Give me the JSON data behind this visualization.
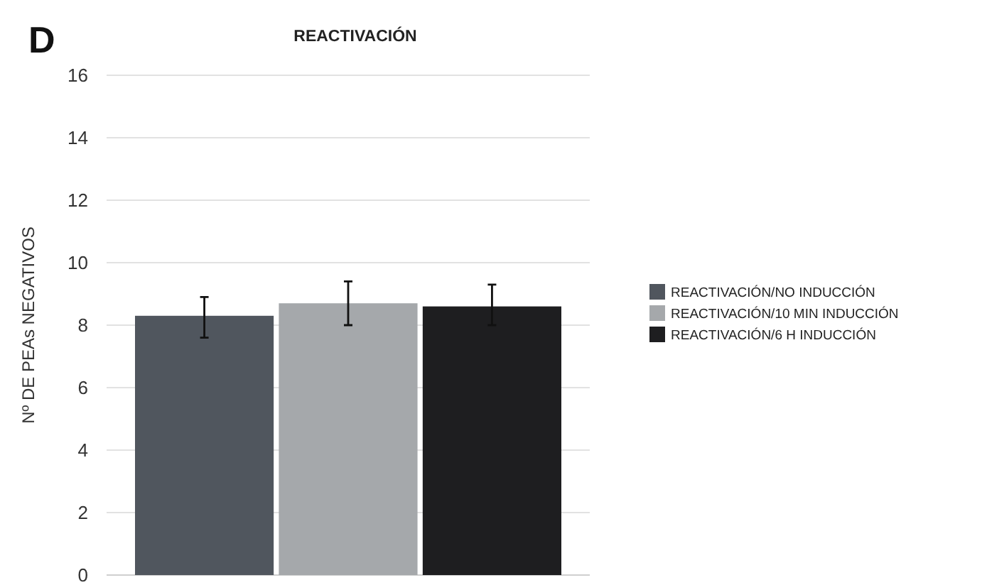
{
  "chart_data": {
    "type": "bar",
    "title": "REACTIVACIÓN",
    "ylabel": "Nº DE PEAs NEGATIVOS",
    "annotations": [
      "D"
    ],
    "categories": [
      null
    ],
    "series": [
      {
        "name": "REACTIVACIÓN/NO INDUCCIÓN",
        "color": "#50565e",
        "values": [
          8.3
        ],
        "errors": [
          [
            7.6,
            8.9
          ]
        ]
      },
      {
        "name": "REACTIVACIÓN/10 MIN INDUCCIÓN",
        "color": "#a5a8ab",
        "values": [
          8.7
        ],
        "errors": [
          [
            8.0,
            9.4
          ]
        ]
      },
      {
        "name": "REACTIVACIÓN/6 H INDUCCIÓN",
        "color": "#1e1e20",
        "values": [
          8.6
        ],
        "errors": [
          [
            8.0,
            9.3
          ]
        ]
      }
    ],
    "ylim": [
      0,
      16
    ],
    "yticks": [
      0,
      2,
      4,
      6,
      8,
      10,
      12,
      14,
      16
    ],
    "grid": "y",
    "legend": "right"
  }
}
